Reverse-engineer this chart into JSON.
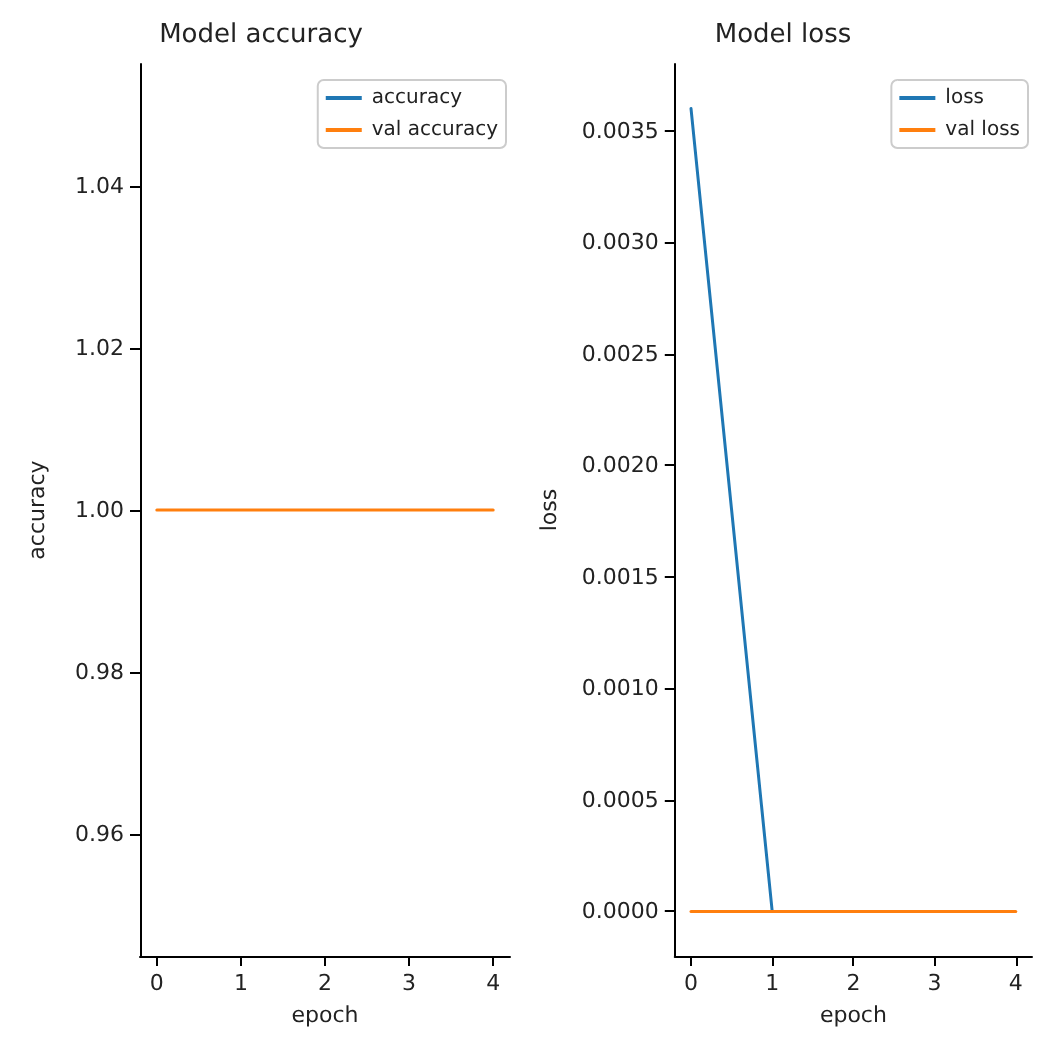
{
  "chart_data": [
    {
      "type": "line",
      "title": "Model accuracy",
      "xlabel": "epoch",
      "ylabel": "accuracy",
      "x": [
        0,
        1,
        2,
        3,
        4
      ],
      "series": [
        {
          "name": "accuracy",
          "color": "#1f77b4",
          "values": [
            null,
            null,
            null,
            null,
            null
          ]
        },
        {
          "name": "val accuracy",
          "color": "#ff7f0e",
          "values": [
            1.0,
            1.0,
            1.0,
            1.0,
            1.0
          ]
        }
      ],
      "xlim": [
        -0.2,
        4.2
      ],
      "xticks": [
        0,
        1,
        2,
        3,
        4
      ],
      "ylim": [
        0.945,
        1.055
      ],
      "yticks": [
        {
          "value": 0.96,
          "label": "0.96"
        },
        {
          "value": 0.98,
          "label": "0.98"
        },
        {
          "value": 1.0,
          "label": "1.00"
        },
        {
          "value": 1.02,
          "label": "1.02"
        },
        {
          "value": 1.04,
          "label": "1.04"
        }
      ],
      "legend": "top right",
      "marker": "none",
      "line_style": "solid",
      "grid": false
    },
    {
      "type": "line",
      "title": "Model loss",
      "xlabel": "epoch",
      "ylabel": "loss",
      "x": [
        0,
        1,
        2,
        3,
        4
      ],
      "series": [
        {
          "name": "loss",
          "color": "#1f77b4",
          "values": [
            0.0036,
            0.0,
            null,
            null,
            null
          ]
        },
        {
          "name": "val loss",
          "color": "#ff7f0e",
          "values": [
            0.0,
            0.0,
            0.0,
            0.0,
            0.0
          ]
        }
      ],
      "xlim": [
        -0.2,
        4.2
      ],
      "xticks": [
        0,
        1,
        2,
        3,
        4
      ],
      "ylim": [
        -0.0002,
        0.0038
      ],
      "yticks": [
        {
          "value": 0,
          "label": "0.0000"
        },
        {
          "value": 0.0005,
          "label": "0.0005"
        },
        {
          "value": 0.001,
          "label": "0.0010"
        },
        {
          "value": 0.0015,
          "label": "0.0015"
        },
        {
          "value": 0.002,
          "label": "0.0020"
        },
        {
          "value": 0.0025,
          "label": "0.0025"
        },
        {
          "value": 0.003,
          "label": "0.0030"
        },
        {
          "value": 0.0035,
          "label": "0.0035"
        }
      ],
      "legend": "top right",
      "marker": "none",
      "line_style": "solid",
      "grid": false
    }
  ]
}
